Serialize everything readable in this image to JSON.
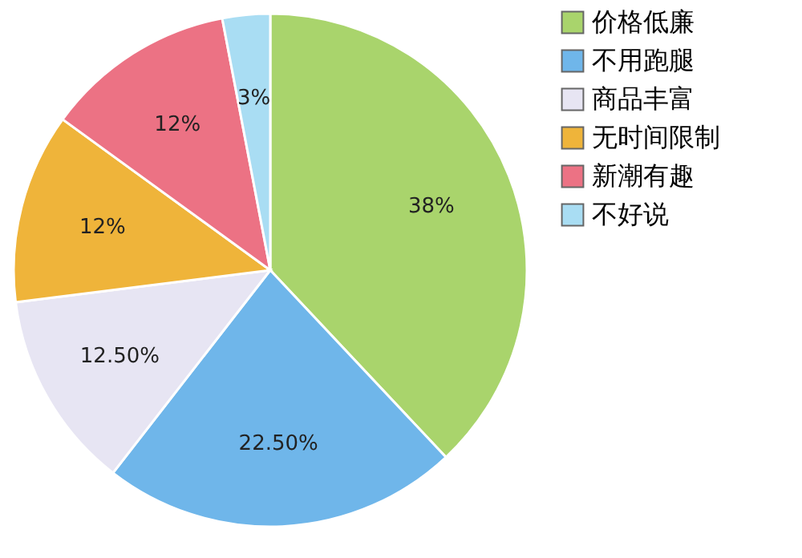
{
  "chart_data": {
    "type": "pie",
    "categories": [
      "价格低廉",
      "不用跑腿",
      "商品丰富",
      "无时间限制",
      "新潮有趣",
      "不好说"
    ],
    "values": [
      38,
      22.5,
      12.5,
      12,
      12,
      3
    ],
    "value_labels": [
      "38%",
      "22.50%",
      "12.50%",
      "12%",
      "12%",
      "3%"
    ],
    "colors": [
      "#a9d46c",
      "#6fb6ea",
      "#e7e5f3",
      "#efb43a",
      "#ec7284",
      "#a9ddf3"
    ],
    "legend": "right"
  }
}
